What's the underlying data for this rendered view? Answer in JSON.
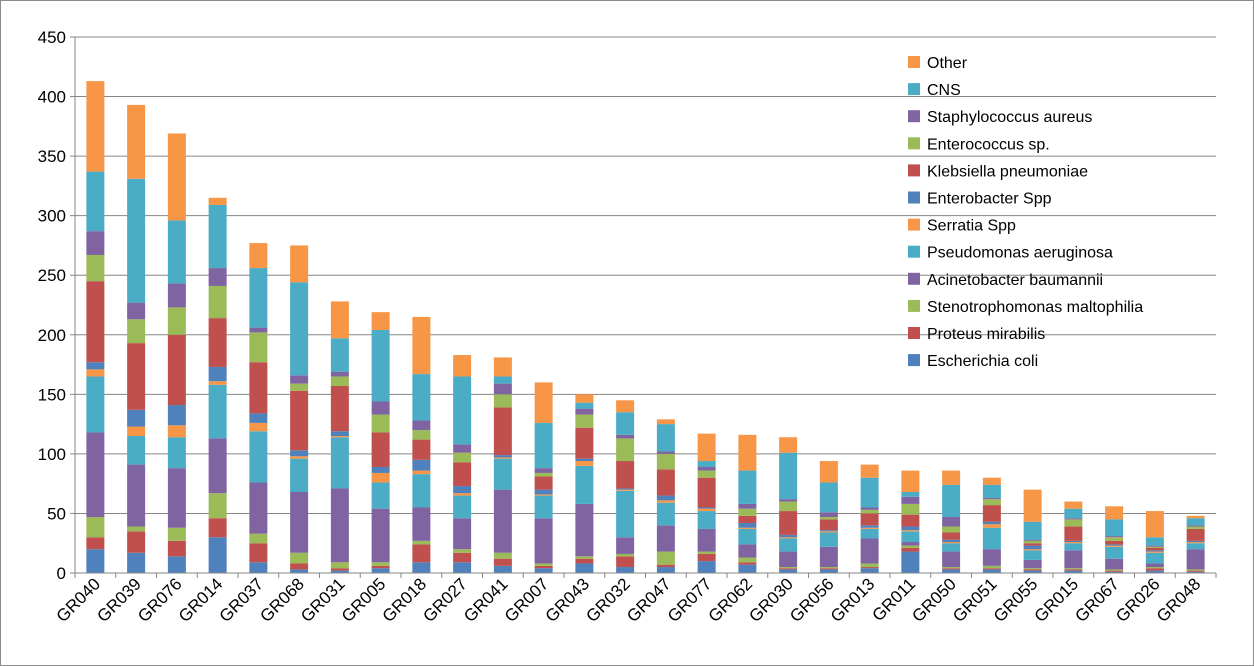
{
  "chart_data": {
    "type": "bar",
    "stacked": true,
    "title": "",
    "xlabel": "",
    "ylabel": "",
    "ylim": [
      0,
      450
    ],
    "yticks": [
      0,
      50,
      100,
      150,
      200,
      250,
      300,
      350,
      400,
      450
    ],
    "grid": "horizontal",
    "legend_position": "right",
    "categories": [
      "GR040",
      "GR039",
      "GR076",
      "GR014",
      "GR037",
      "GR068",
      "GR031",
      "GR005",
      "GR018",
      "GR027",
      "GR041",
      "GR007",
      "GR043",
      "GR032",
      "GR047",
      "GR077",
      "GR062",
      "GR030",
      "GR056",
      "GR013",
      "GR011",
      "GR050",
      "GR051",
      "GR055",
      "GR015",
      "GR067",
      "GR026",
      "GR048"
    ],
    "series": [
      {
        "name": "Escherichia coli",
        "color": "#4f81bd",
        "values": [
          20,
          17,
          14,
          30,
          9,
          3,
          2,
          4,
          9,
          9,
          6,
          4,
          8,
          5,
          5,
          10,
          7,
          3,
          3,
          4,
          18,
          3,
          3,
          2,
          2,
          1,
          2,
          1
        ]
      },
      {
        "name": "Proteus mirabilis",
        "color": "#c0504d",
        "values": [
          10,
          18,
          13,
          16,
          16,
          5,
          2,
          2,
          15,
          8,
          6,
          2,
          4,
          9,
          2,
          6,
          2,
          1,
          1,
          1,
          3,
          1,
          1,
          1,
          1,
          1,
          2,
          1
        ]
      },
      {
        "name": "Stenotrophomonas maltophilia",
        "color": "#9bbb59",
        "values": [
          17,
          4,
          11,
          21,
          8,
          9,
          5,
          3,
          3,
          3,
          5,
          2,
          2,
          2,
          11,
          2,
          4,
          1,
          1,
          3,
          2,
          1,
          2,
          1,
          1,
          1,
          1,
          1
        ]
      },
      {
        "name": "Acinetobacter baumannii",
        "color": "#8064a2",
        "values": [
          71,
          52,
          50,
          46,
          43,
          51,
          62,
          45,
          28,
          26,
          53,
          38,
          44,
          14,
          22,
          19,
          11,
          13,
          17,
          21,
          3,
          13,
          14,
          7,
          15,
          9,
          3,
          17
        ]
      },
      {
        "name": "Pseudomonas aeruginosa",
        "color": "#4bacc6",
        "values": [
          47,
          24,
          26,
          45,
          43,
          28,
          43,
          22,
          28,
          19,
          26,
          19,
          32,
          39,
          19,
          15,
          13,
          11,
          12,
          8,
          9,
          7,
          18,
          8,
          6,
          10,
          9,
          5
        ]
      },
      {
        "name": "Serratia Spp",
        "color": "#f79646",
        "values": [
          6,
          8,
          10,
          3,
          7,
          2,
          1,
          8,
          3,
          2,
          1,
          1,
          4,
          1,
          2,
          2,
          1,
          1,
          1,
          1,
          1,
          1,
          3,
          1,
          1,
          1,
          1,
          1
        ]
      },
      {
        "name": "Enterobacter Spp",
        "color": "#4f81bd",
        "values": [
          6,
          14,
          17,
          12,
          8,
          5,
          4,
          5,
          9,
          6,
          2,
          4,
          2,
          1,
          4,
          1,
          4,
          2,
          1,
          2,
          3,
          2,
          2,
          3,
          1,
          1,
          1,
          1
        ]
      },
      {
        "name": "Klebsiella pneumoniae",
        "color": "#c0504d",
        "values": [
          68,
          56,
          59,
          41,
          43,
          50,
          38,
          29,
          17,
          20,
          40,
          11,
          26,
          23,
          22,
          25,
          6,
          20,
          9,
          10,
          10,
          6,
          14,
          2,
          12,
          3,
          2,
          10
        ]
      },
      {
        "name": "Enterococcus sp.",
        "color": "#9bbb59",
        "values": [
          22,
          20,
          23,
          27,
          25,
          6,
          8,
          15,
          8,
          8,
          11,
          3,
          11,
          19,
          13,
          6,
          6,
          8,
          2,
          3,
          9,
          5,
          5,
          2,
          6,
          3,
          1,
          2
        ]
      },
      {
        "name": "Staphylococcus aureus",
        "color": "#8064a2",
        "values": [
          20,
          14,
          20,
          15,
          4,
          7,
          4,
          11,
          8,
          7,
          9,
          4,
          5,
          3,
          2,
          3,
          4,
          2,
          4,
          2,
          6,
          8,
          1,
          1,
          1,
          1,
          1,
          1
        ]
      },
      {
        "name": "CNS",
        "color": "#4bacc6",
        "values": [
          50,
          104,
          53,
          53,
          50,
          78,
          28,
          60,
          39,
          57,
          6,
          38,
          5,
          19,
          23,
          5,
          28,
          39,
          25,
          25,
          4,
          27,
          11,
          15,
          8,
          14,
          7,
          6
        ]
      },
      {
        "name": "Other",
        "color": "#f79646",
        "values": [
          76,
          62,
          73,
          6,
          21,
          31,
          31,
          15,
          48,
          18,
          16,
          34,
          7,
          10,
          4,
          23,
          30,
          13,
          18,
          11,
          18,
          12,
          6,
          27,
          6,
          11,
          22,
          2
        ]
      }
    ]
  }
}
